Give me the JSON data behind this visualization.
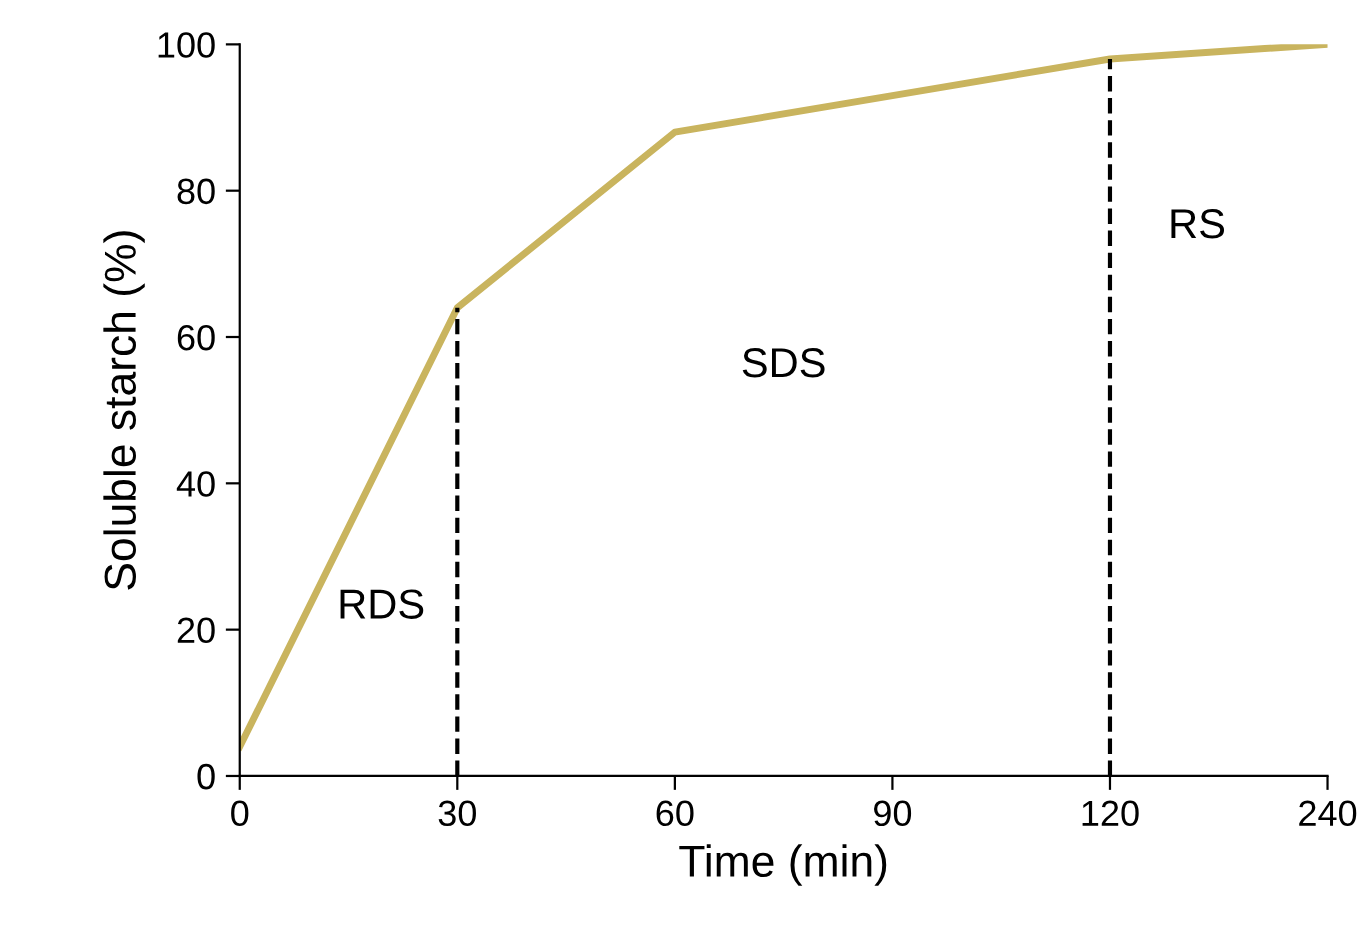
{
  "chart_data": {
    "type": "line",
    "xlabel": "Time (min)",
    "ylabel": "Soluble starch (%)",
    "categories": [
      "0",
      "30",
      "60",
      "90",
      "120",
      "240"
    ],
    "series": [
      {
        "color": "#c9b45e",
        "values": [
          4,
          64,
          88,
          93,
          98,
          100
        ]
      }
    ],
    "ylim": [
      0,
      100
    ],
    "yticks": [
      0,
      20,
      40,
      60,
      80,
      100
    ],
    "grid": false,
    "legend": false,
    "marker": "none",
    "line_style": "solid",
    "ref_lines": [
      {
        "axis": "x",
        "value": "30",
        "line_style": "dashed",
        "color": "#000000"
      },
      {
        "axis": "x",
        "value": "120",
        "line_style": "dashed",
        "color": "#000000"
      }
    ],
    "annotations": [
      "RDS",
      "SDS",
      "RS"
    ]
  }
}
